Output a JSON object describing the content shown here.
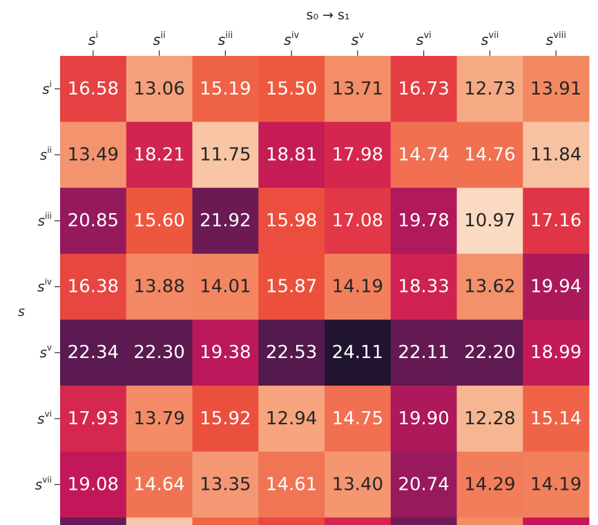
{
  "chart_data": {
    "type": "heatmap",
    "title": "",
    "xlabel": "s₀ → s₁",
    "ylabel": "s",
    "x_tick_base": "s",
    "y_tick_base": "s",
    "x_ticks": [
      "i",
      "ii",
      "iii",
      "iv",
      "v",
      "vi",
      "vii",
      "viii"
    ],
    "y_ticks": [
      "i",
      "ii",
      "iii",
      "iv",
      "v",
      "vi",
      "vii"
    ],
    "values": [
      [
        16.58,
        13.06,
        15.19,
        15.5,
        13.71,
        16.73,
        12.73,
        13.91
      ],
      [
        13.49,
        18.21,
        11.75,
        18.81,
        17.98,
        14.74,
        14.76,
        11.84
      ],
      [
        20.85,
        15.6,
        21.92,
        15.98,
        17.08,
        19.78,
        10.97,
        17.16
      ],
      [
        16.38,
        13.88,
        14.01,
        15.87,
        14.19,
        18.33,
        13.62,
        19.94
      ],
      [
        22.34,
        22.3,
        19.38,
        22.53,
        24.11,
        22.11,
        22.2,
        18.99
      ],
      [
        17.93,
        13.79,
        15.92,
        12.94,
        14.75,
        19.9,
        12.28,
        15.14
      ],
      [
        19.08,
        14.64,
        13.35,
        14.61,
        13.4,
        20.74,
        14.29,
        14.19
      ]
    ],
    "colormap": "rocket_r",
    "value_range": [
      10.97,
      24.11
    ],
    "annotate_values": true,
    "x_axis_position": "top",
    "grid": false
  }
}
